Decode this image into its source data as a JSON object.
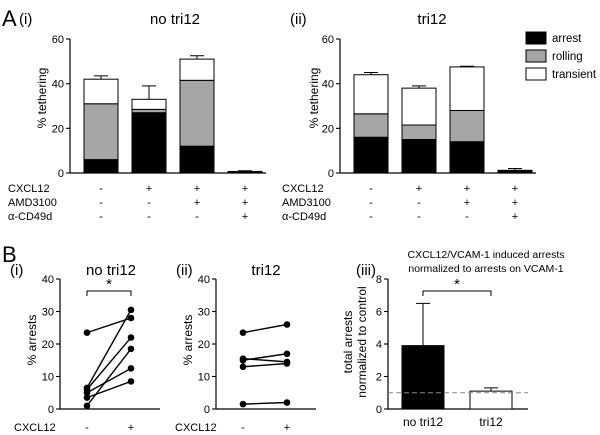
{
  "figure": {
    "panel_a": "A",
    "panel_b": "B",
    "sub_i": "(i)",
    "sub_ii": "(ii)",
    "sub_iii": "(iii)"
  },
  "conditions": {
    "a_labels": [
      "CXCL12",
      "AMD3100",
      "α-CD49d"
    ],
    "a_marks": [
      [
        "-",
        "-",
        "-"
      ],
      [
        "+",
        "-",
        "-"
      ],
      [
        "+",
        "+",
        "-"
      ],
      [
        "+",
        "+",
        "+"
      ]
    ],
    "b_label": "CXCL12",
    "b_marks": [
      "-",
      "+"
    ]
  },
  "colors": {
    "arrest": "#000000",
    "rolling": "#a6a6a6",
    "transient": "#ffffff",
    "dashed_line": "#888888"
  },
  "chart_data": [
    {
      "id": "Ai",
      "type": "bar",
      "stacked": true,
      "title": "no tri12",
      "ylabel": "% tethering",
      "ylim": [
        0,
        60
      ],
      "yticks": [
        0,
        20,
        40,
        60
      ],
      "grid": false,
      "legend": "top-right",
      "series": [
        {
          "name": "arrest",
          "values": [
            6,
            27,
            12,
            0.3
          ],
          "errors": [
            1.5,
            1.5,
            3,
            0
          ]
        },
        {
          "name": "rolling",
          "values": [
            25,
            1.5,
            29.5,
            0.2
          ],
          "errors": [
            1,
            0.5,
            1.5,
            0
          ]
        },
        {
          "name": "transient",
          "values": [
            11,
            4.5,
            9.5,
            0.2
          ],
          "errors": [
            1.5,
            6,
            1.5,
            0.3
          ]
        }
      ]
    },
    {
      "id": "Aii",
      "type": "bar",
      "stacked": true,
      "title": "tri12",
      "ylabel": "% tethering",
      "ylim": [
        0,
        60
      ],
      "yticks": [
        0,
        20,
        40,
        60
      ],
      "grid": false,
      "legend": "top-right",
      "series": [
        {
          "name": "arrest",
          "values": [
            16,
            15,
            14,
            0.6
          ],
          "errors": [
            0.7,
            0.7,
            0.7,
            0
          ]
        },
        {
          "name": "rolling",
          "values": [
            10.5,
            6.5,
            14,
            0.2
          ],
          "errors": [
            0.7,
            0.7,
            1,
            0
          ]
        },
        {
          "name": "transient",
          "values": [
            17.5,
            16.5,
            19.5,
            0.4
          ],
          "errors": [
            1,
            1,
            0.3,
            0.8
          ]
        }
      ]
    },
    {
      "id": "Bi",
      "type": "line",
      "title": "no tri12",
      "ylabel": "% arrests",
      "ylim": [
        0,
        40
      ],
      "yticks": [
        0,
        10,
        20,
        30,
        40
      ],
      "significance": "*",
      "series": [
        {
          "values": [
            1,
            18.5
          ]
        },
        {
          "values": [
            5,
            12.5
          ]
        },
        {
          "values": [
            6,
            22
          ]
        },
        {
          "values": [
            6.5,
            30.5
          ]
        },
        {
          "values": [
            23.5,
            28
          ]
        },
        {
          "values": [
            3.5,
            8.5
          ]
        }
      ]
    },
    {
      "id": "Bii",
      "type": "line",
      "title": "tri12",
      "ylabel": "% arrests",
      "ylim": [
        0,
        40
      ],
      "yticks": [
        0,
        10,
        20,
        30,
        40
      ],
      "series": [
        {
          "values": [
            23.5,
            26
          ]
        },
        {
          "values": [
            15,
            17
          ]
        },
        {
          "values": [
            15.5,
            14.5
          ]
        },
        {
          "values": [
            13,
            14
          ]
        },
        {
          "values": [
            1.5,
            2
          ]
        }
      ]
    },
    {
      "id": "Biii",
      "type": "bar",
      "title": "CXCL12/VCAM-1 induced arrests normalized to arrests on VCAM-1",
      "title_lines": [
        "CXCL12/VCAM-1 induced arrests",
        "normalized to arrests on VCAM-1"
      ],
      "ylabel_lines": [
        "total arrests",
        "normalized to control"
      ],
      "categories": [
        "no tri12",
        "tri12"
      ],
      "values": [
        3.9,
        1.1
      ],
      "errors": [
        2.6,
        0.2
      ],
      "bar_colors": [
        "#000000",
        "#ffffff"
      ],
      "ylim": [
        0,
        8
      ],
      "yticks": [
        0,
        2,
        4,
        6,
        8
      ],
      "reference_line": 1,
      "significance": "*"
    }
  ]
}
